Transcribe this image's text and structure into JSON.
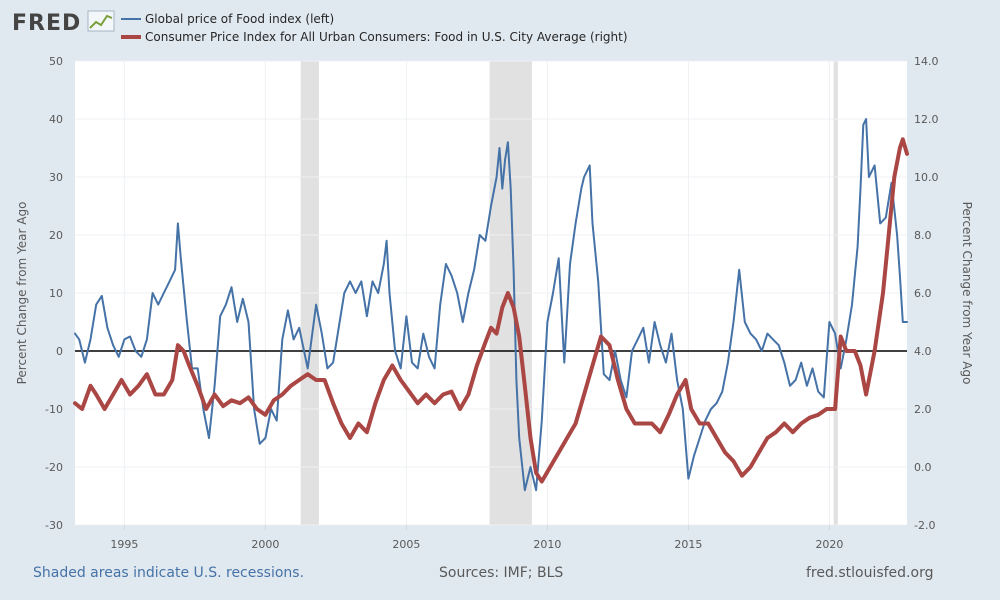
{
  "logo": {
    "text": "FRED"
  },
  "footer": {
    "note": "Shaded areas indicate U.S. recessions.",
    "sources": "Sources: IMF; BLS",
    "url": "fred.stlouisfed.org"
  },
  "chart_data": {
    "type": "line",
    "left_axis": {
      "label": "Percent Change from Year Ago",
      "range": [
        -30,
        50
      ],
      "ticks": [
        "50",
        "40",
        "30",
        "20",
        "10",
        "0",
        "-10",
        "-20",
        "-30"
      ]
    },
    "right_axis": {
      "label": "Percent Change from Year Ago",
      "range": [
        -2.0,
        14.0
      ],
      "ticks": [
        "14.0",
        "12.0",
        "10.0",
        "8.0",
        "6.0",
        "4.0",
        "2.0",
        "0.0",
        "-2.0"
      ]
    },
    "x_axis": {
      "range": [
        1993.25,
        2022.75
      ],
      "ticks": [
        {
          "label": "1995",
          "value": 1995
        },
        {
          "label": "2000",
          "value": 2000
        },
        {
          "label": "2005",
          "value": 2005
        },
        {
          "label": "2010",
          "value": 2010
        },
        {
          "label": "2015",
          "value": 2015
        },
        {
          "label": "2020",
          "value": 2020
        }
      ]
    },
    "recessions": [
      [
        2001.25,
        2001.9
      ],
      [
        2007.95,
        2009.45
      ],
      [
        2020.15,
        2020.3
      ]
    ],
    "series": [
      {
        "name": "Global price of Food index (left)",
        "axis": "left",
        "color": "#4572a7",
        "points": [
          [
            1993.25,
            3
          ],
          [
            1993.4,
            2
          ],
          [
            1993.6,
            -2
          ],
          [
            1993.8,
            2
          ],
          [
            1994.0,
            8
          ],
          [
            1994.2,
            9.5
          ],
          [
            1994.4,
            4
          ],
          [
            1994.6,
            1
          ],
          [
            1994.8,
            -1
          ],
          [
            1995.0,
            2
          ],
          [
            1995.2,
            2.5
          ],
          [
            1995.4,
            0
          ],
          [
            1995.6,
            -1
          ],
          [
            1995.8,
            2
          ],
          [
            1996.0,
            10
          ],
          [
            1996.2,
            8
          ],
          [
            1996.4,
            10
          ],
          [
            1996.6,
            12
          ],
          [
            1996.8,
            14
          ],
          [
            1996.9,
            22
          ],
          [
            1997.0,
            16
          ],
          [
            1997.2,
            6
          ],
          [
            1997.4,
            -3
          ],
          [
            1997.6,
            -3
          ],
          [
            1997.8,
            -10
          ],
          [
            1998.0,
            -15
          ],
          [
            1998.2,
            -6
          ],
          [
            1998.4,
            6
          ],
          [
            1998.6,
            8
          ],
          [
            1998.8,
            11
          ],
          [
            1999.0,
            5
          ],
          [
            1999.2,
            9
          ],
          [
            1999.4,
            5
          ],
          [
            1999.6,
            -10
          ],
          [
            1999.8,
            -16
          ],
          [
            2000.0,
            -15
          ],
          [
            2000.2,
            -10
          ],
          [
            2000.4,
            -12
          ],
          [
            2000.6,
            2
          ],
          [
            2000.8,
            7
          ],
          [
            2001.0,
            2
          ],
          [
            2001.2,
            4
          ],
          [
            2001.5,
            -3
          ],
          [
            2001.8,
            8
          ],
          [
            2002.0,
            3
          ],
          [
            2002.2,
            -3
          ],
          [
            2002.4,
            -2
          ],
          [
            2002.6,
            4
          ],
          [
            2002.8,
            10
          ],
          [
            2003.0,
            12
          ],
          [
            2003.2,
            10
          ],
          [
            2003.4,
            12
          ],
          [
            2003.6,
            6
          ],
          [
            2003.8,
            12
          ],
          [
            2004.0,
            10
          ],
          [
            2004.2,
            15
          ],
          [
            2004.3,
            19
          ],
          [
            2004.4,
            10
          ],
          [
            2004.6,
            0
          ],
          [
            2004.8,
            -3
          ],
          [
            2005.0,
            6
          ],
          [
            2005.2,
            -2
          ],
          [
            2005.4,
            -3
          ],
          [
            2005.6,
            3
          ],
          [
            2005.8,
            -1
          ],
          [
            2006.0,
            -3
          ],
          [
            2006.2,
            8
          ],
          [
            2006.4,
            15
          ],
          [
            2006.6,
            13
          ],
          [
            2006.8,
            10
          ],
          [
            2007.0,
            5
          ],
          [
            2007.2,
            10
          ],
          [
            2007.4,
            14
          ],
          [
            2007.6,
            20
          ],
          [
            2007.8,
            19
          ],
          [
            2008.0,
            25
          ],
          [
            2008.2,
            30
          ],
          [
            2008.3,
            35
          ],
          [
            2008.4,
            28
          ],
          [
            2008.5,
            33
          ],
          [
            2008.6,
            36
          ],
          [
            2008.7,
            28
          ],
          [
            2008.8,
            14
          ],
          [
            2008.9,
            -5
          ],
          [
            2009.0,
            -15
          ],
          [
            2009.2,
            -24
          ],
          [
            2009.4,
            -20
          ],
          [
            2009.6,
            -24
          ],
          [
            2009.8,
            -12
          ],
          [
            2010.0,
            5
          ],
          [
            2010.2,
            10
          ],
          [
            2010.4,
            16
          ],
          [
            2010.6,
            -2
          ],
          [
            2010.8,
            15
          ],
          [
            2011.0,
            22
          ],
          [
            2011.2,
            28
          ],
          [
            2011.3,
            30
          ],
          [
            2011.5,
            32
          ],
          [
            2011.6,
            22
          ],
          [
            2011.8,
            12
          ],
          [
            2012.0,
            -4
          ],
          [
            2012.2,
            -5
          ],
          [
            2012.4,
            0
          ],
          [
            2012.6,
            -5
          ],
          [
            2012.8,
            -8
          ],
          [
            2013.0,
            0
          ],
          [
            2013.2,
            2
          ],
          [
            2013.4,
            4
          ],
          [
            2013.6,
            -2
          ],
          [
            2013.8,
            5
          ],
          [
            2014.0,
            1
          ],
          [
            2014.2,
            -2
          ],
          [
            2014.4,
            3
          ],
          [
            2014.6,
            -5
          ],
          [
            2014.8,
            -10
          ],
          [
            2015.0,
            -22
          ],
          [
            2015.2,
            -18
          ],
          [
            2015.4,
            -15
          ],
          [
            2015.6,
            -12
          ],
          [
            2015.8,
            -10
          ],
          [
            2016.0,
            -9
          ],
          [
            2016.2,
            -7
          ],
          [
            2016.4,
            -2
          ],
          [
            2016.6,
            5
          ],
          [
            2016.8,
            14
          ],
          [
            2017.0,
            5
          ],
          [
            2017.2,
            3
          ],
          [
            2017.4,
            2
          ],
          [
            2017.6,
            0
          ],
          [
            2017.8,
            3
          ],
          [
            2018.0,
            2
          ],
          [
            2018.2,
            1
          ],
          [
            2018.4,
            -2
          ],
          [
            2018.6,
            -6
          ],
          [
            2018.8,
            -5
          ],
          [
            2019.0,
            -2
          ],
          [
            2019.2,
            -6
          ],
          [
            2019.4,
            -3
          ],
          [
            2019.6,
            -7
          ],
          [
            2019.8,
            -8
          ],
          [
            2020.0,
            5
          ],
          [
            2020.2,
            3
          ],
          [
            2020.4,
            -3
          ],
          [
            2020.6,
            2
          ],
          [
            2020.8,
            8
          ],
          [
            2021.0,
            18
          ],
          [
            2021.1,
            28
          ],
          [
            2021.2,
            39
          ],
          [
            2021.3,
            40
          ],
          [
            2021.4,
            30
          ],
          [
            2021.6,
            32
          ],
          [
            2021.8,
            22
          ],
          [
            2022.0,
            23
          ],
          [
            2022.2,
            29
          ],
          [
            2022.4,
            20
          ],
          [
            2022.5,
            13
          ],
          [
            2022.6,
            5
          ],
          [
            2022.75,
            5
          ]
        ]
      },
      {
        "name": "Consumer Price Index for All Urban Consumers: Food in U.S. City Average (right)",
        "axis": "right",
        "color": "#aa4643",
        "points": [
          [
            1993.25,
            2.2
          ],
          [
            1993.5,
            2.0
          ],
          [
            1993.8,
            2.8
          ],
          [
            1994.0,
            2.5
          ],
          [
            1994.3,
            2.0
          ],
          [
            1994.6,
            2.5
          ],
          [
            1994.9,
            3.0
          ],
          [
            1995.2,
            2.5
          ],
          [
            1995.5,
            2.8
          ],
          [
            1995.8,
            3.2
          ],
          [
            1996.1,
            2.5
          ],
          [
            1996.4,
            2.5
          ],
          [
            1996.7,
            3.0
          ],
          [
            1996.9,
            4.2
          ],
          [
            1997.1,
            4.0
          ],
          [
            1997.3,
            3.5
          ],
          [
            1997.6,
            2.8
          ],
          [
            1997.9,
            2.0
          ],
          [
            1998.2,
            2.5
          ],
          [
            1998.5,
            2.1
          ],
          [
            1998.8,
            2.3
          ],
          [
            1999.1,
            2.2
          ],
          [
            1999.4,
            2.4
          ],
          [
            1999.7,
            2.0
          ],
          [
            2000.0,
            1.8
          ],
          [
            2000.3,
            2.3
          ],
          [
            2000.6,
            2.5
          ],
          [
            2000.9,
            2.8
          ],
          [
            2001.2,
            3.0
          ],
          [
            2001.5,
            3.2
          ],
          [
            2001.8,
            3.0
          ],
          [
            2002.1,
            3.0
          ],
          [
            2002.4,
            2.2
          ],
          [
            2002.7,
            1.5
          ],
          [
            2003.0,
            1.0
          ],
          [
            2003.3,
            1.5
          ],
          [
            2003.6,
            1.2
          ],
          [
            2003.9,
            2.2
          ],
          [
            2004.2,
            3.0
          ],
          [
            2004.5,
            3.5
          ],
          [
            2004.8,
            3.0
          ],
          [
            2005.1,
            2.6
          ],
          [
            2005.4,
            2.2
          ],
          [
            2005.7,
            2.5
          ],
          [
            2006.0,
            2.2
          ],
          [
            2006.3,
            2.5
          ],
          [
            2006.6,
            2.6
          ],
          [
            2006.9,
            2.0
          ],
          [
            2007.2,
            2.5
          ],
          [
            2007.5,
            3.5
          ],
          [
            2007.8,
            4.3
          ],
          [
            2008.0,
            4.8
          ],
          [
            2008.2,
            4.6
          ],
          [
            2008.4,
            5.5
          ],
          [
            2008.6,
            6.0
          ],
          [
            2008.8,
            5.5
          ],
          [
            2009.0,
            4.5
          ],
          [
            2009.2,
            2.8
          ],
          [
            2009.4,
            1.0
          ],
          [
            2009.6,
            -0.2
          ],
          [
            2009.8,
            -0.5
          ],
          [
            2010.1,
            0
          ],
          [
            2010.4,
            0.5
          ],
          [
            2010.7,
            1.0
          ],
          [
            2011.0,
            1.5
          ],
          [
            2011.3,
            2.5
          ],
          [
            2011.6,
            3.5
          ],
          [
            2011.9,
            4.5
          ],
          [
            2012.2,
            4.2
          ],
          [
            2012.5,
            3.0
          ],
          [
            2012.8,
            2.0
          ],
          [
            2013.1,
            1.5
          ],
          [
            2013.4,
            1.5
          ],
          [
            2013.7,
            1.5
          ],
          [
            2014.0,
            1.2
          ],
          [
            2014.3,
            1.8
          ],
          [
            2014.6,
            2.5
          ],
          [
            2014.9,
            3.0
          ],
          [
            2015.1,
            2.0
          ],
          [
            2015.4,
            1.5
          ],
          [
            2015.7,
            1.5
          ],
          [
            2016.0,
            1.0
          ],
          [
            2016.3,
            0.5
          ],
          [
            2016.6,
            0.2
          ],
          [
            2016.9,
            -0.3
          ],
          [
            2017.2,
            0
          ],
          [
            2017.5,
            0.5
          ],
          [
            2017.8,
            1.0
          ],
          [
            2018.1,
            1.2
          ],
          [
            2018.4,
            1.5
          ],
          [
            2018.7,
            1.2
          ],
          [
            2019.0,
            1.5
          ],
          [
            2019.3,
            1.7
          ],
          [
            2019.6,
            1.8
          ],
          [
            2019.9,
            2.0
          ],
          [
            2020.2,
            2.0
          ],
          [
            2020.4,
            4.5
          ],
          [
            2020.6,
            4.0
          ],
          [
            2020.9,
            4.0
          ],
          [
            2021.1,
            3.5
          ],
          [
            2021.3,
            2.5
          ],
          [
            2021.6,
            4.0
          ],
          [
            2021.9,
            6.0
          ],
          [
            2022.1,
            8.0
          ],
          [
            2022.3,
            10.0
          ],
          [
            2022.5,
            11.0
          ],
          [
            2022.6,
            11.3
          ],
          [
            2022.75,
            10.8
          ]
        ]
      }
    ]
  }
}
